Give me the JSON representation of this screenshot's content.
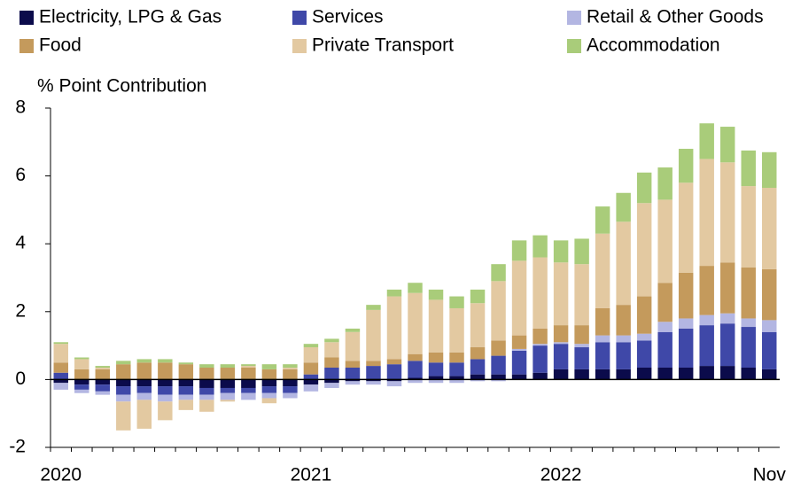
{
  "chart_data": {
    "type": "stacked-bar",
    "y_label": "% Point Contribution",
    "categories": [
      "2020",
      null,
      null,
      null,
      null,
      null,
      null,
      null,
      null,
      null,
      null,
      null,
      "2021",
      null,
      null,
      null,
      null,
      null,
      null,
      null,
      null,
      null,
      null,
      null,
      "2022",
      null,
      null,
      null,
      null,
      null,
      null,
      null,
      null,
      null,
      "Nov"
    ],
    "series": [
      {
        "name": "Electricity, LPG & Gas",
        "color": "#0b0b4b",
        "values": [
          -0.1,
          -0.15,
          -0.15,
          -0.2,
          -0.2,
          -0.2,
          -0.2,
          -0.25,
          -0.25,
          -0.25,
          -0.2,
          -0.2,
          -0.15,
          -0.1,
          -0.05,
          -0.05,
          -0.05,
          0.05,
          0.1,
          0.1,
          0.15,
          0.15,
          0.15,
          0.2,
          0.3,
          0.3,
          0.3,
          0.3,
          0.35,
          0.35,
          0.35,
          0.4,
          0.4,
          0.35,
          0.3
        ]
      },
      {
        "name": "Services",
        "color": "#3f48a8",
        "values": [
          0.2,
          -0.15,
          -0.2,
          -0.25,
          -0.2,
          -0.25,
          -0.25,
          -0.2,
          -0.15,
          -0.15,
          -0.2,
          -0.2,
          0.15,
          0.35,
          0.35,
          0.4,
          0.45,
          0.5,
          0.4,
          0.4,
          0.45,
          0.55,
          0.7,
          0.8,
          0.75,
          0.65,
          0.8,
          0.8,
          0.8,
          1.05,
          1.15,
          1.2,
          1.25,
          1.2,
          1.1
        ]
      },
      {
        "name": "Retail & Other Goods",
        "color": "#b3b6e2",
        "values": [
          -0.2,
          -0.1,
          -0.1,
          -0.2,
          -0.2,
          -0.2,
          -0.15,
          -0.15,
          -0.2,
          -0.2,
          -0.15,
          -0.15,
          -0.2,
          -0.15,
          -0.1,
          -0.1,
          -0.15,
          -0.1,
          -0.1,
          -0.1,
          -0.05,
          -0.05,
          0.05,
          0.05,
          0.05,
          0.1,
          0.2,
          0.2,
          0.2,
          0.3,
          0.3,
          0.3,
          0.3,
          0.25,
          0.35
        ]
      },
      {
        "name": "Food",
        "color": "#c49a5c",
        "values": [
          0.3,
          0.3,
          0.3,
          0.45,
          0.5,
          0.5,
          0.45,
          0.35,
          0.35,
          0.35,
          0.3,
          0.3,
          0.35,
          0.3,
          0.2,
          0.15,
          0.15,
          0.2,
          0.3,
          0.3,
          0.35,
          0.45,
          0.4,
          0.45,
          0.5,
          0.55,
          0.8,
          0.9,
          1.1,
          1.15,
          1.35,
          1.45,
          1.5,
          1.5,
          1.5
        ]
      },
      {
        "name": "Private Transport",
        "color": "#e3c9a1",
        "values": [
          0.55,
          0.3,
          0.05,
          -0.85,
          -0.85,
          -0.55,
          -0.3,
          -0.35,
          -0.05,
          0.05,
          -0.15,
          0.05,
          0.45,
          0.45,
          0.85,
          1.5,
          1.85,
          1.8,
          1.55,
          1.3,
          1.3,
          1.75,
          2.2,
          2.1,
          1.85,
          1.8,
          2.2,
          2.45,
          2.75,
          2.45,
          2.65,
          3.15,
          2.95,
          2.4,
          2.4
        ]
      },
      {
        "name": "Accommodation",
        "color": "#a9cc7a",
        "values": [
          0.05,
          0.05,
          0.05,
          0.1,
          0.1,
          0.1,
          0.05,
          0.1,
          0.1,
          0.05,
          0.15,
          0.1,
          0.1,
          0.1,
          0.1,
          0.15,
          0.2,
          0.3,
          0.3,
          0.35,
          0.4,
          0.5,
          0.6,
          0.65,
          0.65,
          0.75,
          0.8,
          0.85,
          0.9,
          0.95,
          1.0,
          1.05,
          1.05,
          1.05,
          1.05
        ]
      }
    ],
    "ylim": [
      -2,
      8
    ],
    "yticks": [
      -2,
      0,
      2,
      4,
      6,
      8
    ]
  }
}
